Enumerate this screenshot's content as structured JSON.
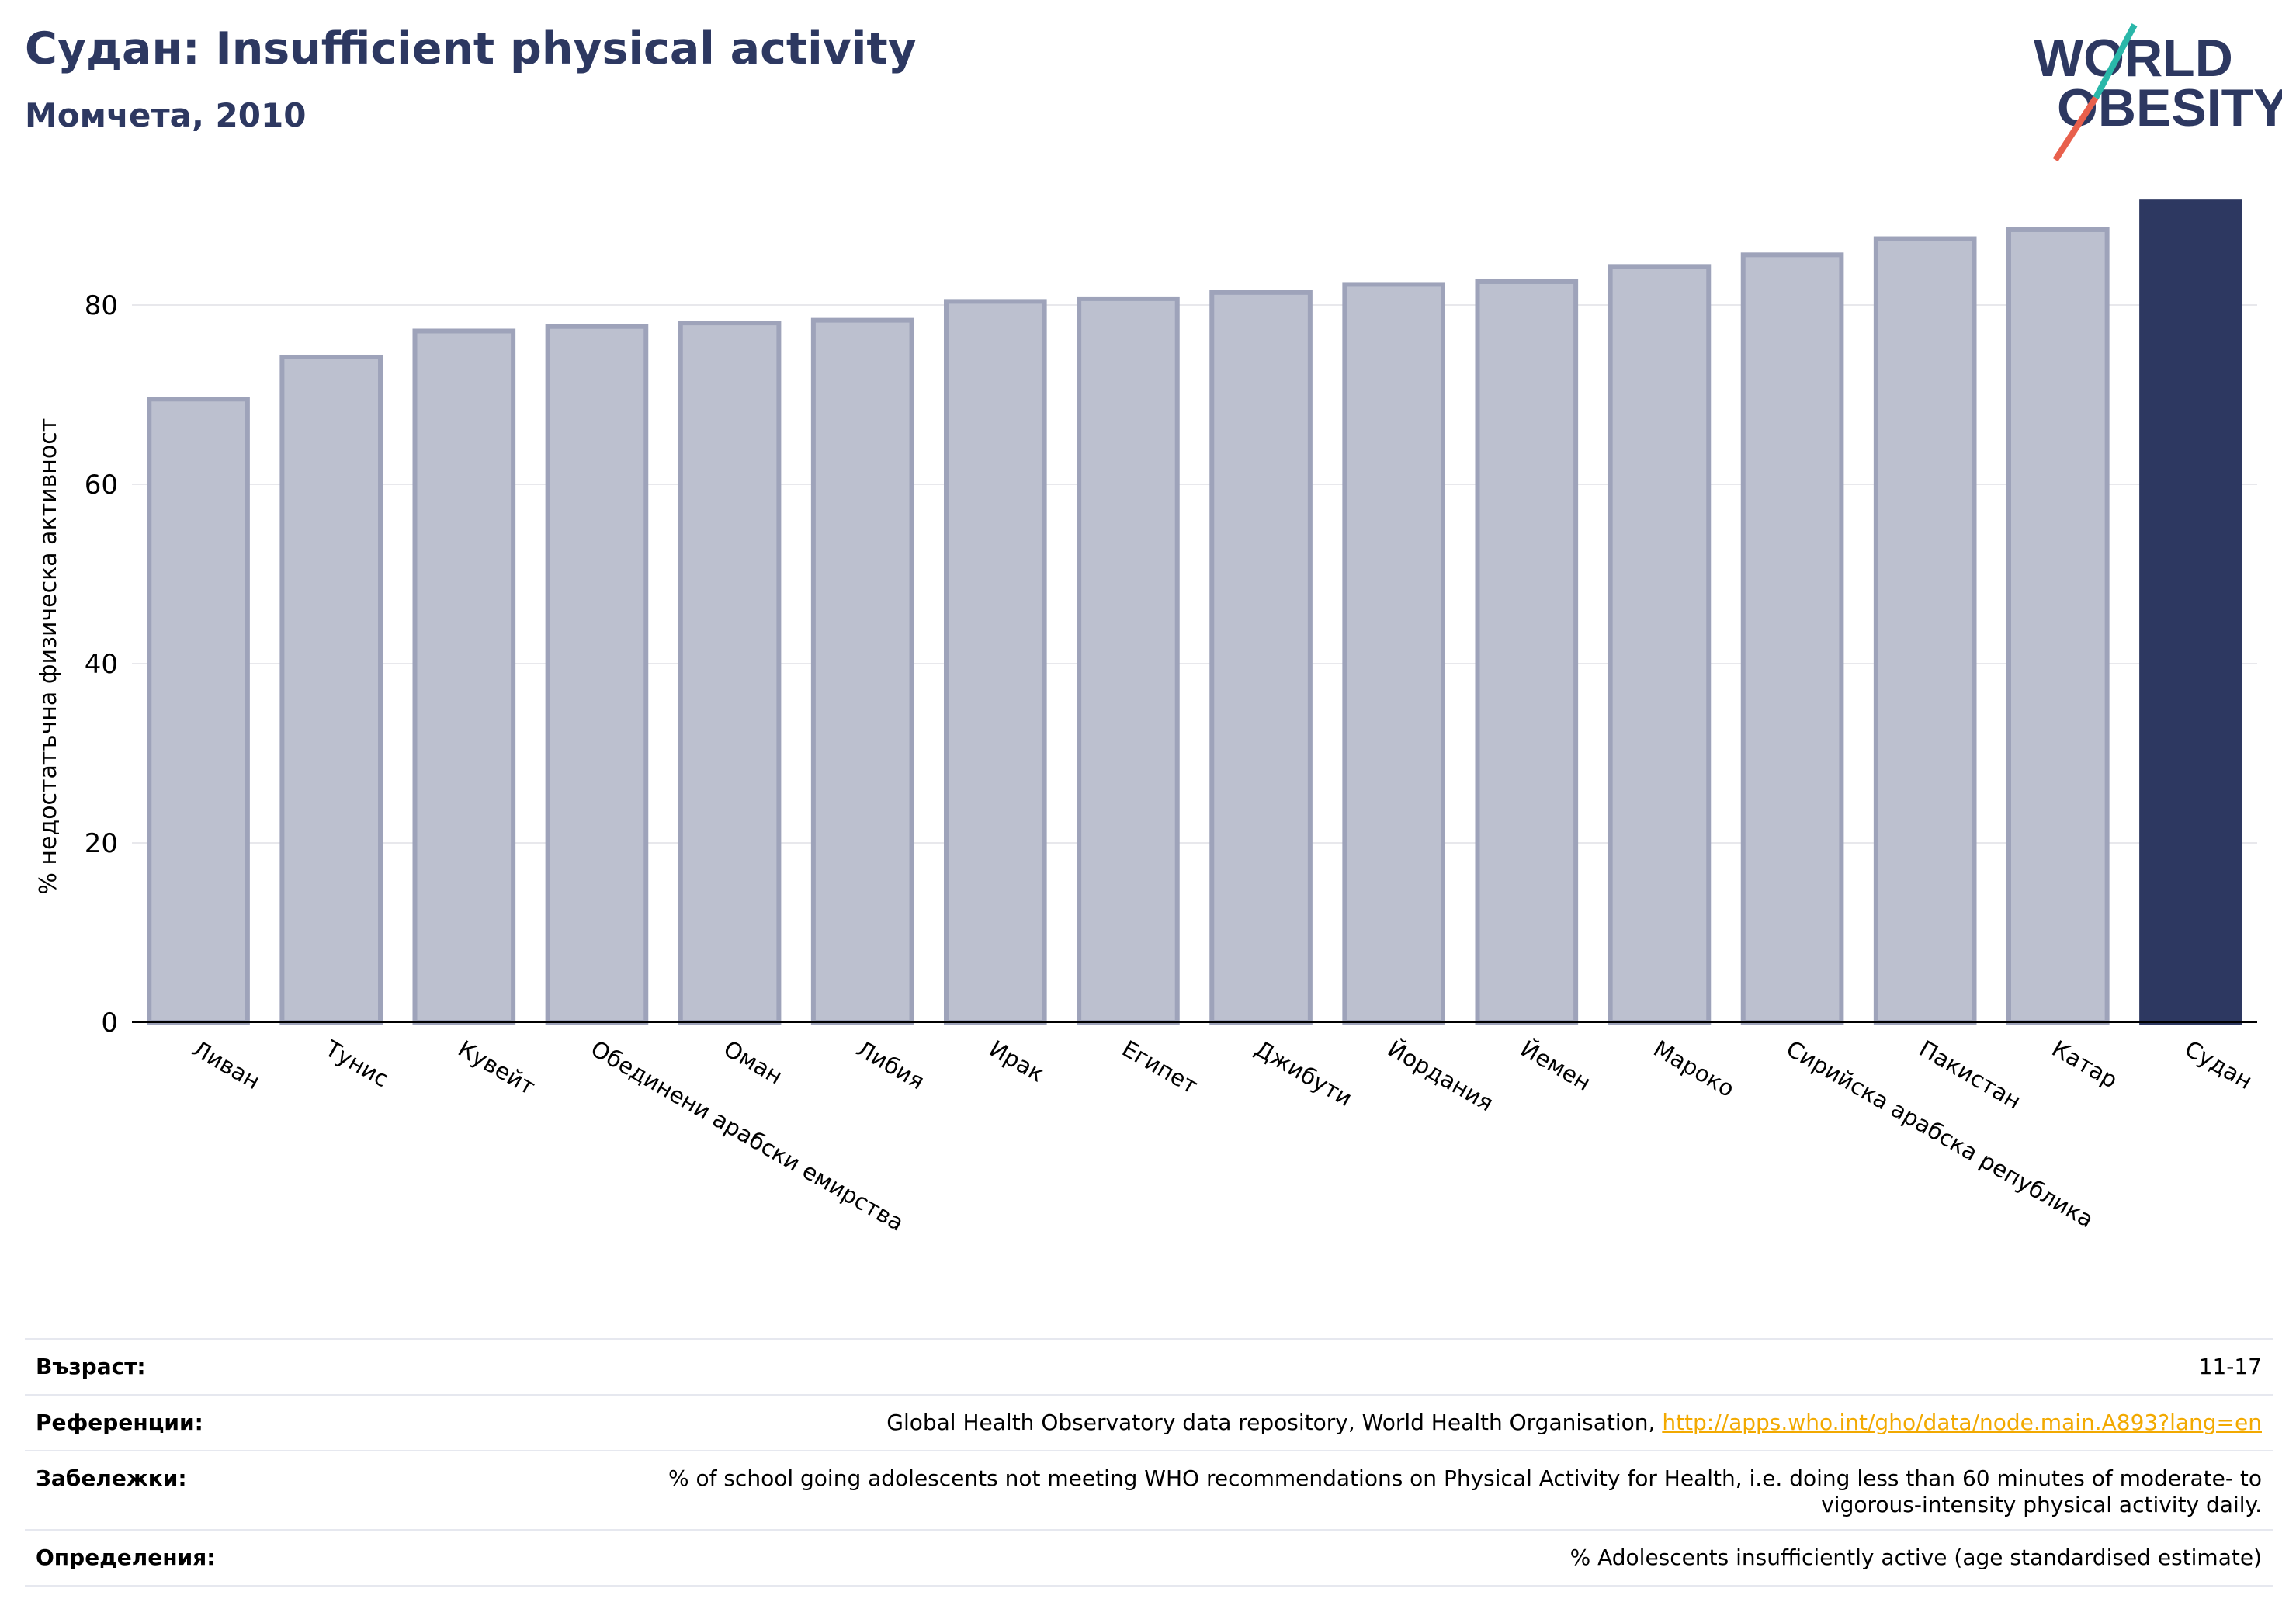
{
  "header": {
    "title": "Судан: Insufficient physical activity",
    "subtitle": "Момчета, 2010",
    "logo_line1": "WORLD",
    "logo_line2": "OBESITY"
  },
  "colors": {
    "brand": "#2d3861",
    "bar_muted": "#bcc0cf",
    "bar_muted_edge": "#9ea3ba",
    "highlight": "#2d3861",
    "link": "#f2a900",
    "logo_teal": "#2ab7a9",
    "logo_red": "#e8604c"
  },
  "chart_data": {
    "type": "bar",
    "title": "",
    "xlabel": "",
    "ylabel": "% недостатъчна физическа активност",
    "ylim": [
      0,
      92
    ],
    "yticks": [
      0,
      20,
      40,
      60,
      80
    ],
    "grid": true,
    "highlight_category": "Судан",
    "categories": [
      "Ливан",
      "Тунис",
      "Кувейт",
      "Обединени арабски емирства",
      "Оман",
      "Либия",
      "Ирак",
      "Египет",
      "Джибути",
      "Йордания",
      "Йемен",
      "Мароко",
      "Сирийска арабска република",
      "Пакистан",
      "Катар",
      "Судан"
    ],
    "values": [
      69.5,
      74.2,
      77.1,
      77.6,
      78.0,
      78.3,
      80.4,
      80.7,
      81.4,
      82.3,
      82.6,
      84.3,
      85.6,
      87.4,
      88.4,
      91.5
    ]
  },
  "footer": {
    "rows": [
      {
        "label": "Възраст:",
        "value": "11-17",
        "link": ""
      },
      {
        "label": "Референции:",
        "value": "Global Health Observatory data repository, World Health Organisation, ",
        "link": "http://apps.who.int/gho/data/node.main.A893?lang=en"
      },
      {
        "label": "Забележки:",
        "value": "% of school going adolescents not meeting WHO recommendations on Physical Activity for Health, i.e. doing less than 60 minutes of moderate- to vigorous-intensity physical activity daily.",
        "link": ""
      },
      {
        "label": "Определения:",
        "value": "% Adolescents insufficiently active (age standardised estimate)",
        "link": ""
      }
    ]
  }
}
